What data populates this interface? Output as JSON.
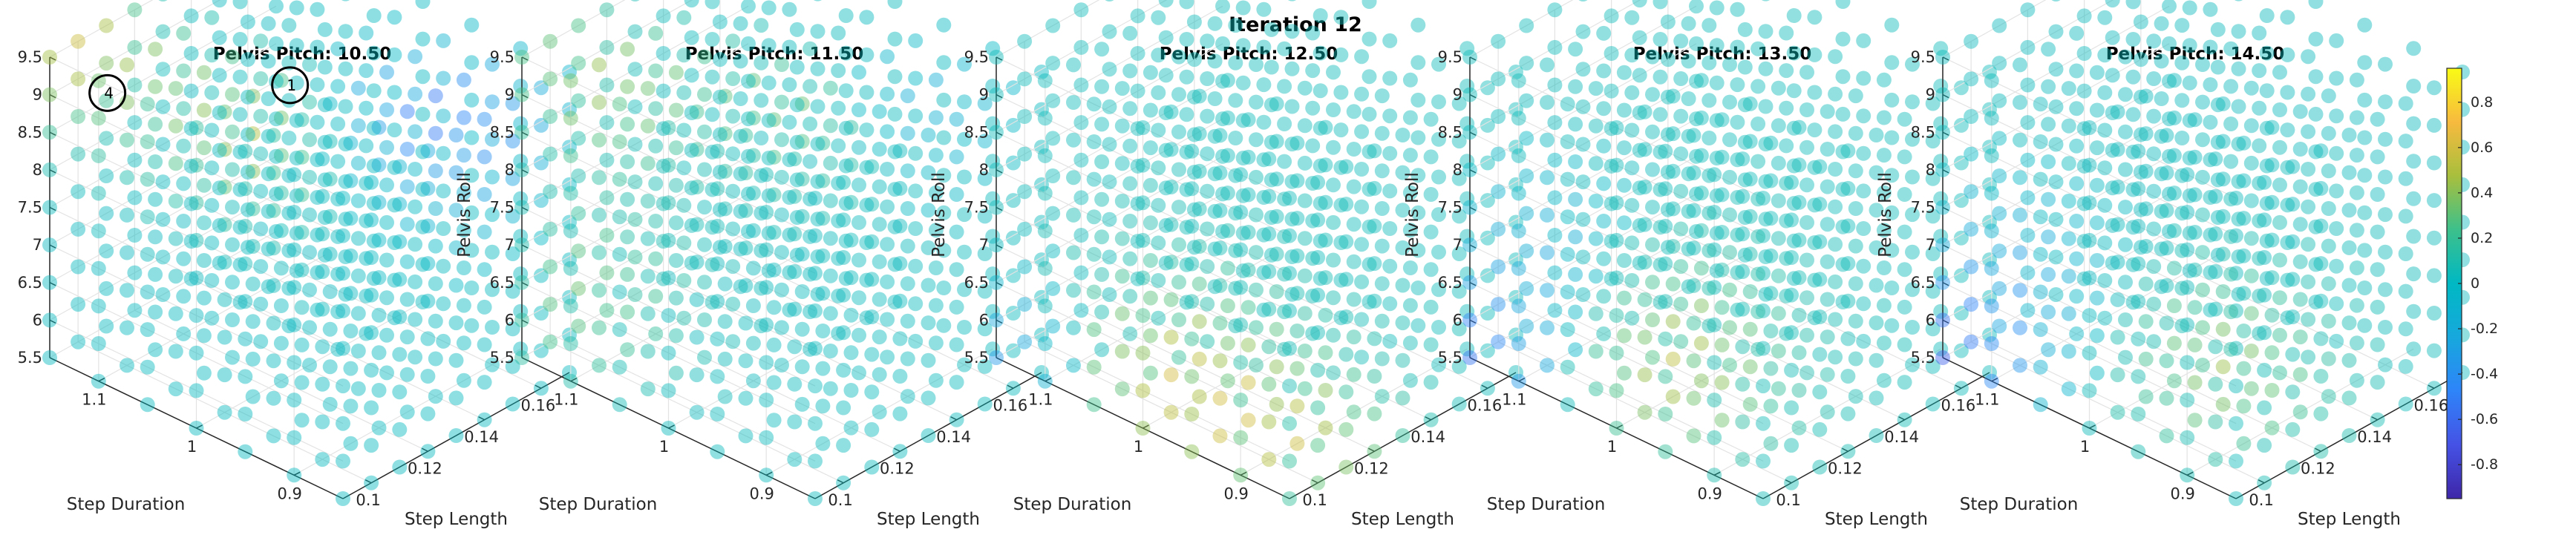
{
  "chart_data": {
    "type": "scatter",
    "title": "Iteration 12",
    "axes": {
      "x": {
        "label": "Step Length",
        "ticks": [
          "0.1",
          "0.12",
          "0.14",
          "0.16"
        ],
        "lim": [
          0.09,
          0.17
        ]
      },
      "y": {
        "label": "Step Duration",
        "ticks": [
          "0.9",
          "1",
          "1.1"
        ],
        "lim": [
          0.85,
          1.15
        ]
      },
      "z": {
        "label": "Pelvis Roll",
        "ticks": [
          "5.5",
          "6",
          "6.5",
          "7",
          "7.5",
          "8",
          "8.5",
          "9",
          "9.5"
        ],
        "lim": [
          5.5,
          9.5
        ]
      }
    },
    "grid": {
      "step_length": [
        0.09,
        0.1,
        0.11,
        0.12,
        0.13,
        0.14,
        0.15,
        0.16,
        0.17
      ],
      "step_duration": [
        0.85,
        0.9,
        0.95,
        1.0,
        1.05,
        1.1,
        1.15
      ],
      "pelvis_roll": [
        5.5,
        6.0,
        6.5,
        7.0,
        7.5,
        8.0,
        8.5,
        9.0,
        9.5
      ]
    },
    "colorbar": {
      "ticks": [
        "0.8",
        "0.6",
        "0.4",
        "0.2",
        "0",
        "-0.2",
        "-0.4",
        "-0.6",
        "-0.8"
      ],
      "lim": [
        -0.95,
        0.95
      ],
      "colormap": "parula"
    },
    "panels": [
      {
        "title": "Pelvis Pitch: 10.50",
        "base_value": 0.02,
        "features": [
          {
            "step_length": 0.1,
            "step_duration": 1.15,
            "pelvis_roll": 9.5,
            "value": 0.55,
            "spread": 0.035
          },
          {
            "step_length": 0.11,
            "step_duration": 1.0,
            "pelvis_roll": 9.0,
            "value": 0.5,
            "spread": 0.03
          },
          {
            "step_length": 0.13,
            "step_duration": 0.9,
            "pelvis_roll": 9.5,
            "value": -0.45,
            "spread": 0.035
          },
          {
            "step_length": 0.15,
            "step_duration": 0.88,
            "pelvis_roll": 9.0,
            "value": -0.35,
            "spread": 0.03
          }
        ],
        "markers": [
          {
            "label": "4",
            "step_length": 0.1,
            "step_duration": 1.12,
            "pelvis_roll": 9.0
          },
          {
            "label": "1",
            "step_length": 0.13,
            "step_duration": 1.02,
            "pelvis_roll": 9.1
          }
        ]
      },
      {
        "title": "Pelvis Pitch: 11.50",
        "base_value": 0.03,
        "features": [
          {
            "step_length": 0.1,
            "step_duration": 1.1,
            "pelvis_roll": 9.3,
            "value": 0.4,
            "spread": 0.04
          },
          {
            "step_length": 0.12,
            "step_duration": 0.95,
            "pelvis_roll": 9.5,
            "value": 0.35,
            "spread": 0.035
          },
          {
            "step_length": 0.11,
            "step_duration": 1.15,
            "pelvis_roll": 6.0,
            "value": 0.3,
            "spread": 0.04
          },
          {
            "step_length": 0.14,
            "step_duration": 0.9,
            "pelvis_roll": 9.5,
            "value": -0.3,
            "spread": 0.03
          }
        ],
        "markers": []
      },
      {
        "title": "Pelvis Pitch: 12.50",
        "base_value": 0.05,
        "features": [
          {
            "step_length": 0.1,
            "step_duration": 1.0,
            "pelvis_roll": 6.0,
            "value": 0.5,
            "spread": 0.04
          },
          {
            "step_length": 0.09,
            "step_duration": 1.15,
            "pelvis_roll": 5.5,
            "value": -0.4,
            "spread": 0.03
          },
          {
            "step_length": 0.11,
            "step_duration": 0.9,
            "pelvis_roll": 5.5,
            "value": 0.45,
            "spread": 0.035
          }
        ],
        "markers": []
      },
      {
        "title": "Pelvis Pitch: 13.50",
        "base_value": 0.05,
        "features": [
          {
            "step_length": 0.11,
            "step_duration": 1.0,
            "pelvis_roll": 6.0,
            "value": 0.5,
            "spread": 0.04
          },
          {
            "step_length": 0.09,
            "step_duration": 1.15,
            "pelvis_roll": 5.5,
            "value": -0.6,
            "spread": 0.035
          },
          {
            "step_length": 0.1,
            "step_duration": 1.1,
            "pelvis_roll": 7.0,
            "value": -0.3,
            "spread": 0.03
          }
        ],
        "markers": []
      },
      {
        "title": "Pelvis Pitch: 14.50",
        "base_value": 0.04,
        "features": [
          {
            "step_length": 0.09,
            "step_duration": 1.15,
            "pelvis_roll": 5.5,
            "value": -0.65,
            "spread": 0.035
          },
          {
            "step_length": 0.12,
            "step_duration": 0.95,
            "pelvis_roll": 6.0,
            "value": 0.4,
            "spread": 0.035
          },
          {
            "step_length": 0.1,
            "step_duration": 1.1,
            "pelvis_roll": 6.8,
            "value": -0.3,
            "spread": 0.03
          }
        ],
        "markers": []
      }
    ]
  }
}
